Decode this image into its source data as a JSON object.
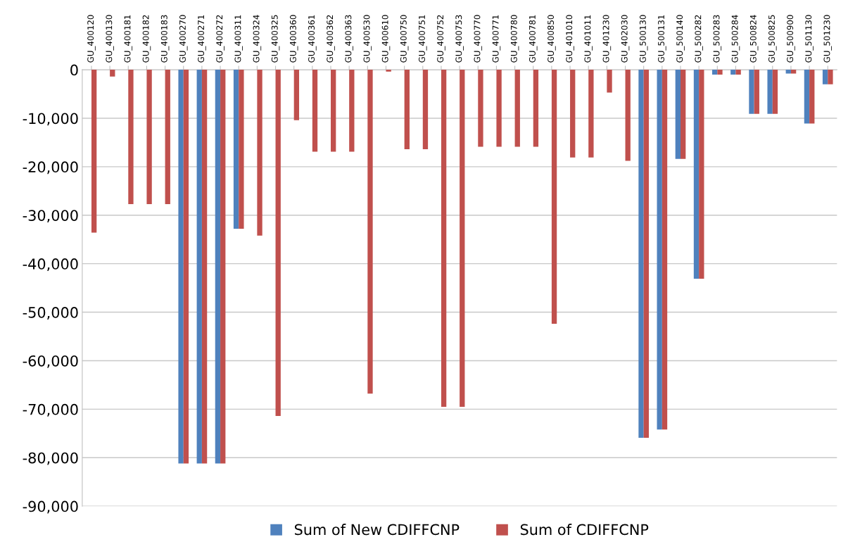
{
  "chart_data": {
    "type": "bar",
    "categories": [
      "GU_400120",
      "GU_400130",
      "GU_400181",
      "GU_400182",
      "GU_400183",
      "GU_400270",
      "GU_400271",
      "GU_400272",
      "GU_400311",
      "GU_400324",
      "GU_400325",
      "GU_400360",
      "GU_400361",
      "GU_400362",
      "GU_400363",
      "GU_400530",
      "GU_400610",
      "GU_400750",
      "GU_400751",
      "GU_400752",
      "GU_400753",
      "GU_400770",
      "GU_400771",
      "GU_400780",
      "GU_400781",
      "GU_400850",
      "GU_401010",
      "GU_401011",
      "GU_401230",
      "GU_402030",
      "GU_500130",
      "GU_500131",
      "GU_500140",
      "GU_500282",
      "GU_500283",
      "GU_500284",
      "GU_500824",
      "GU_500825",
      "GU_500900",
      "GU_501130",
      "GU_501230"
    ],
    "series": [
      {
        "name": "Sum of New CDIFFCNP",
        "color": "#4f81bd",
        "values": [
          null,
          null,
          null,
          null,
          null,
          -81200,
          -81200,
          -81200,
          -32800,
          null,
          null,
          null,
          null,
          null,
          null,
          null,
          null,
          null,
          null,
          null,
          null,
          null,
          null,
          null,
          null,
          null,
          null,
          null,
          null,
          null,
          -75900,
          -74200,
          -18400,
          -43100,
          -1000,
          -1000,
          -9100,
          -9100,
          -800,
          -11100,
          -3000
        ]
      },
      {
        "name": "Sum of CDIFFCNP",
        "color": "#c0504d",
        "values": [
          -33600,
          -1400,
          -27700,
          -27700,
          -27700,
          -81200,
          -81200,
          -81200,
          -32800,
          -34200,
          -71400,
          -10400,
          -16900,
          -16900,
          -16900,
          -66800,
          -400,
          -16400,
          -16400,
          -69500,
          -69500,
          -15900,
          -15900,
          -15900,
          -15900,
          -52400,
          -18100,
          -18100,
          -4700,
          -18800,
          -75900,
          -74200,
          -18400,
          -43100,
          -1000,
          -1000,
          -9100,
          -9100,
          -800,
          -11100,
          -3000
        ]
      }
    ],
    "ylim": [
      -90000,
      0
    ],
    "yticks": [
      {
        "value": -90000,
        "label": "-90,000"
      },
      {
        "value": -80000,
        "label": "-80,000"
      },
      {
        "value": -70000,
        "label": "-70,000"
      },
      {
        "value": -60000,
        "label": "-60,000"
      },
      {
        "value": -50000,
        "label": "-50,000"
      },
      {
        "value": -40000,
        "label": "-40,000"
      },
      {
        "value": -30000,
        "label": "-30,000"
      },
      {
        "value": -20000,
        "label": "-20,000"
      },
      {
        "value": -10000,
        "label": "-10,000"
      },
      0
    ],
    "grid": "y",
    "legend": "bottom"
  }
}
